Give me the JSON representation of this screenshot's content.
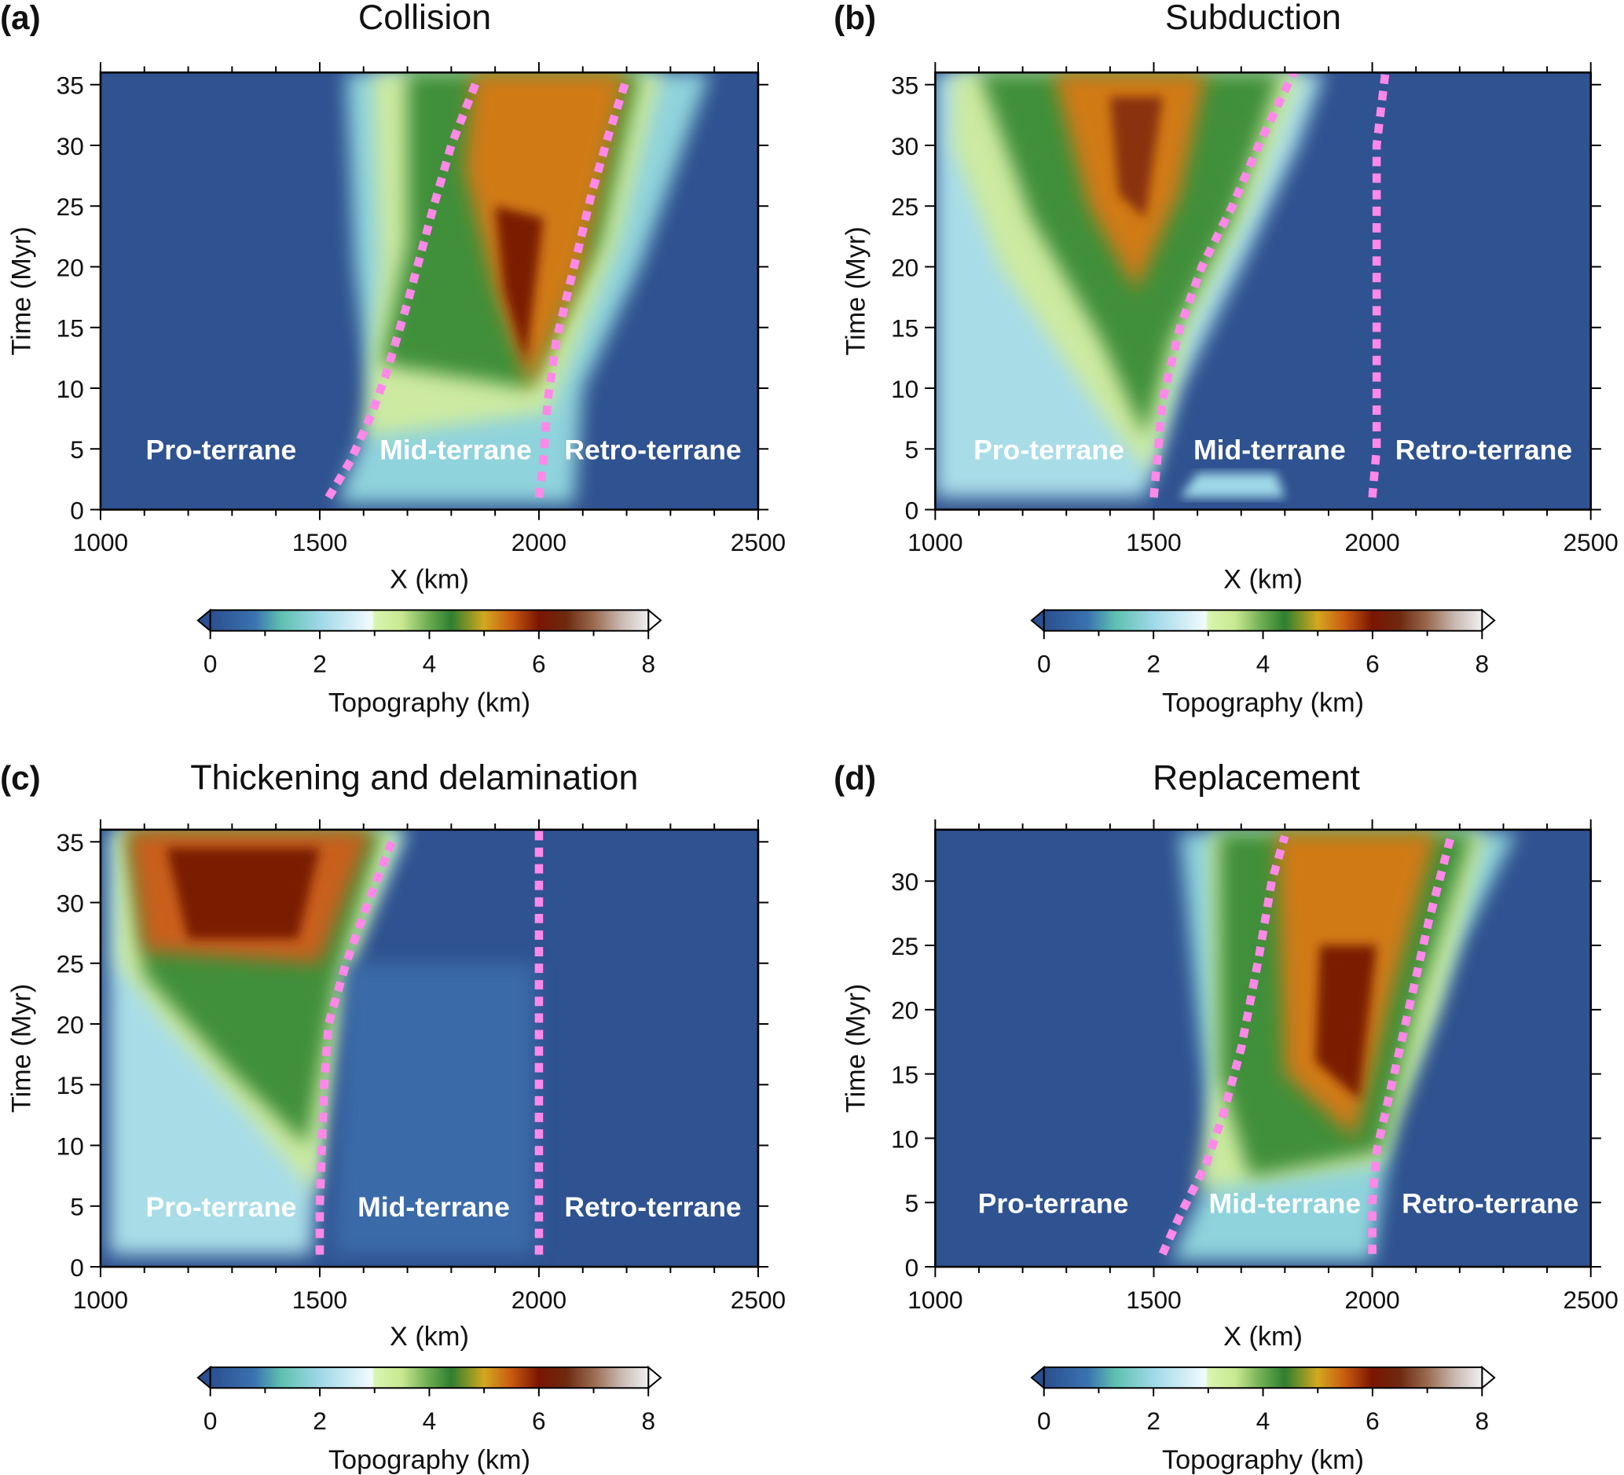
{
  "chart_data": [
    {
      "panel_label": "(a)",
      "title": "Collision",
      "type": "heatmap",
      "xlabel": "X (km)",
      "ylabel": "Time (Myr)",
      "xlim": [
        1000,
        2500
      ],
      "ylim": [
        0,
        36
      ],
      "xticks": [
        1000,
        1500,
        2000,
        2500
      ],
      "yticks": [
        0,
        5,
        10,
        15,
        20,
        25,
        30,
        35
      ],
      "terrane_labels": [
        "Pro-terrane",
        "Mid-terrane",
        "Retro-terrane"
      ],
      "boundaries": [
        {
          "x": [
            1520,
            1570,
            1620,
            1650,
            1700,
            1760,
            1800,
            1860
          ],
          "t": [
            1,
            4,
            8,
            11,
            17,
            25,
            30,
            35.5
          ]
        },
        {
          "x": [
            2000,
            2010,
            2020,
            2040,
            2080,
            2120,
            2160,
            2200
          ],
          "t": [
            1,
            4,
            9,
            14,
            20,
            26,
            31,
            35.5
          ]
        }
      ],
      "colorbar": {
        "label": "Topography (km)",
        "ticks": [
          0,
          2,
          4,
          6,
          8
        ],
        "range": [
          0,
          8
        ],
        "extend": "both"
      }
    },
    {
      "panel_label": "(b)",
      "title": "Subduction",
      "type": "heatmap",
      "xlabel": "X (km)",
      "ylabel": "Time (Myr)",
      "xlim": [
        1000,
        2500
      ],
      "ylim": [
        0,
        36
      ],
      "xticks": [
        1000,
        1500,
        2000,
        2500
      ],
      "yticks": [
        0,
        5,
        10,
        15,
        20,
        25,
        30,
        35
      ],
      "terrane_labels": [
        "Pro-terrane",
        "Mid-terrane",
        "Retro-terrane"
      ],
      "boundaries": [
        {
          "x": [
            1500,
            1510,
            1520,
            1560,
            1610,
            1680,
            1740,
            1820
          ],
          "t": [
            1,
            5,
            9,
            15,
            20,
            25,
            30,
            36
          ]
        },
        {
          "x": [
            2000,
            2010,
            2010,
            2010,
            2010,
            2030
          ],
          "t": [
            1,
            5,
            10,
            20,
            30,
            36
          ]
        }
      ],
      "colorbar": {
        "label": "Topography (km)",
        "ticks": [
          0,
          2,
          4,
          6,
          8
        ],
        "range": [
          0,
          8
        ],
        "extend": "both"
      }
    },
    {
      "panel_label": "(c)",
      "title": "Thickening and delamination",
      "type": "heatmap",
      "xlabel": "X (km)",
      "ylabel": "Time (Myr)",
      "xlim": [
        1000,
        2500
      ],
      "ylim": [
        0,
        36
      ],
      "xticks": [
        1000,
        1500,
        2000,
        2500
      ],
      "yticks": [
        0,
        5,
        10,
        15,
        20,
        25,
        30,
        35
      ],
      "terrane_labels": [
        "Pro-terrane",
        "Mid-terrane",
        "Retro-terrane"
      ],
      "boundaries": [
        {
          "x": [
            1500,
            1500,
            1505,
            1510,
            1520,
            1560,
            1610,
            1670
          ],
          "t": [
            1,
            5,
            10,
            15,
            20,
            25,
            30,
            35.5
          ]
        },
        {
          "x": [
            2000,
            2000
          ],
          "t": [
            1,
            36
          ]
        }
      ],
      "colorbar": {
        "label": "Topography (km)",
        "ticks": [
          0,
          2,
          4,
          6,
          8
        ],
        "range": [
          0,
          8
        ],
        "extend": "both"
      }
    },
    {
      "panel_label": "(d)",
      "title": "Replacement",
      "type": "heatmap",
      "xlabel": "X (km)",
      "ylabel": "Time (Myr)",
      "xlim": [
        1000,
        2500
      ],
      "ylim": [
        0,
        34
      ],
      "xticks": [
        1000,
        1500,
        2000,
        2500
      ],
      "yticks": [
        0,
        5,
        10,
        15,
        20,
        25,
        30
      ],
      "terrane_labels": [
        "Pro-terrane",
        "Mid-terrane",
        "Retro-terrane"
      ],
      "boundaries": [
        {
          "x": [
            1520,
            1560,
            1620,
            1660,
            1700,
            1740,
            1770,
            1800
          ],
          "t": [
            1,
            4,
            8,
            12,
            17,
            24,
            30,
            33.5
          ]
        },
        {
          "x": [
            2000,
            2000,
            2010,
            2050,
            2090,
            2130,
            2180
          ],
          "t": [
            1,
            5,
            9,
            15,
            21,
            27,
            33.5
          ]
        }
      ],
      "colorbar": {
        "label": "Topography (km)",
        "ticks": [
          0,
          2,
          4,
          6,
          8
        ],
        "range": [
          0,
          8
        ],
        "extend": "both"
      }
    }
  ],
  "colormap": [
    {
      "v": 0,
      "c": "#2b4f8e"
    },
    {
      "v": 0.8,
      "c": "#3a72b0"
    },
    {
      "v": 1.3,
      "c": "#5fc0b0"
    },
    {
      "v": 2,
      "c": "#9fd8e8"
    },
    {
      "v": 2.95,
      "c": "#f2fbff"
    },
    {
      "v": 3,
      "c": "#d9f5b0"
    },
    {
      "v": 3.5,
      "c": "#c8e890"
    },
    {
      "v": 4,
      "c": "#6aaa50"
    },
    {
      "v": 4.4,
      "c": "#2f7f30"
    },
    {
      "v": 5,
      "c": "#d4a820"
    },
    {
      "v": 5.5,
      "c": "#c85a10"
    },
    {
      "v": 6,
      "c": "#7a1500"
    },
    {
      "v": 6.5,
      "c": "#6e2a10"
    },
    {
      "v": 7,
      "c": "#9a6a50"
    },
    {
      "v": 7.5,
      "c": "#c8b8b0"
    },
    {
      "v": 8,
      "c": "#f0f0f0"
    }
  ],
  "boundary_color": "#ff88e8",
  "background_color": "#2f5290"
}
